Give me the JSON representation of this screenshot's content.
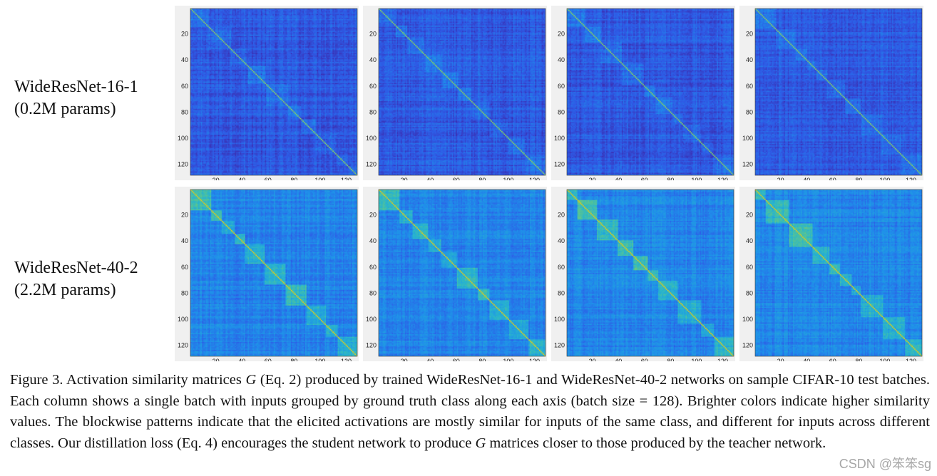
{
  "rows": [
    {
      "name_line": "WideResNet-16-1",
      "params_line": "(0.2M params)"
    },
    {
      "name_line": "WideResNet-40-2",
      "params_line": "(2.2M params)"
    }
  ],
  "tick_labels": [
    "20",
    "40",
    "60",
    "80",
    "100",
    "120"
  ],
  "matrix": {
    "size": 128,
    "num_classes": 10,
    "colormap": [
      "#3d26a8",
      "#2e5be6",
      "#1f8fea",
      "#27b3cf",
      "#59c591",
      "#c8c62a",
      "#f6e51c"
    ]
  },
  "caption": {
    "fig_label": "Figure 3.",
    "part1": " Activation similarity matrices ",
    "symbol": "G",
    "part2": " (Eq.  2) produced by trained WideResNet-16-1 and WideResNet-40-2 networks on sample CIFAR-10 test batches. Each column shows a single batch with inputs grouped by ground truth class along each axis (batch size = 128). Brighter colors indicate higher similarity values. The blockwise patterns indicate that the elicited activations are mostly similar for inputs of the same class, and different for inputs across different classes. Our distillation loss (Eq. 4) encourages the student network to produce ",
    "symbol2": "G",
    "part3": " matrices closer to those produced by the teacher network."
  },
  "watermark": "CSDN @笨笨sg"
}
